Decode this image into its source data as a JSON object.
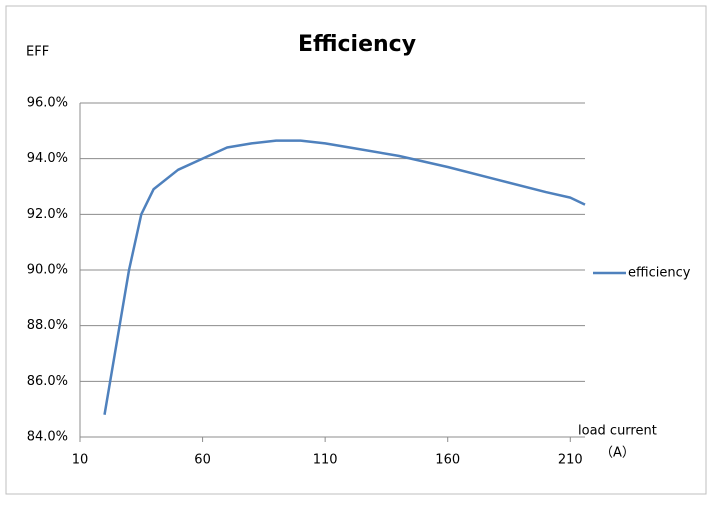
{
  "chart_data": {
    "type": "line",
    "title": "Efficiency",
    "y_label": "EFF",
    "x_label": "load current",
    "x_unit": "（A）",
    "x": [
      20,
      30,
      35,
      40,
      50,
      60,
      70,
      80,
      90,
      100,
      110,
      120,
      140,
      160,
      180,
      200,
      210,
      216
    ],
    "series": [
      {
        "name": "efficiency",
        "color": "#4f81bd",
        "values": [
          84.8,
          90.0,
          92.0,
          92.9,
          93.6,
          94.0,
          94.4,
          94.55,
          94.65,
          94.65,
          94.55,
          94.4,
          94.1,
          93.7,
          93.25,
          92.8,
          92.6,
          92.35
        ]
      }
    ],
    "xlim": [
      10,
      216
    ],
    "xticks": [
      10,
      60,
      110,
      160,
      210
    ],
    "ylim": [
      84,
      96
    ],
    "yticks": [
      {
        "value": 84,
        "label": "84.0%"
      },
      {
        "value": 86,
        "label": "86.0%"
      },
      {
        "value": 88,
        "label": "88.0%"
      },
      {
        "value": 90,
        "label": "90.0%"
      },
      {
        "value": 92,
        "label": "92.0%"
      },
      {
        "value": 94,
        "label": "94.0%"
      },
      {
        "value": 96,
        "label": "96.0%"
      }
    ],
    "grid": true,
    "legend": "right"
  }
}
